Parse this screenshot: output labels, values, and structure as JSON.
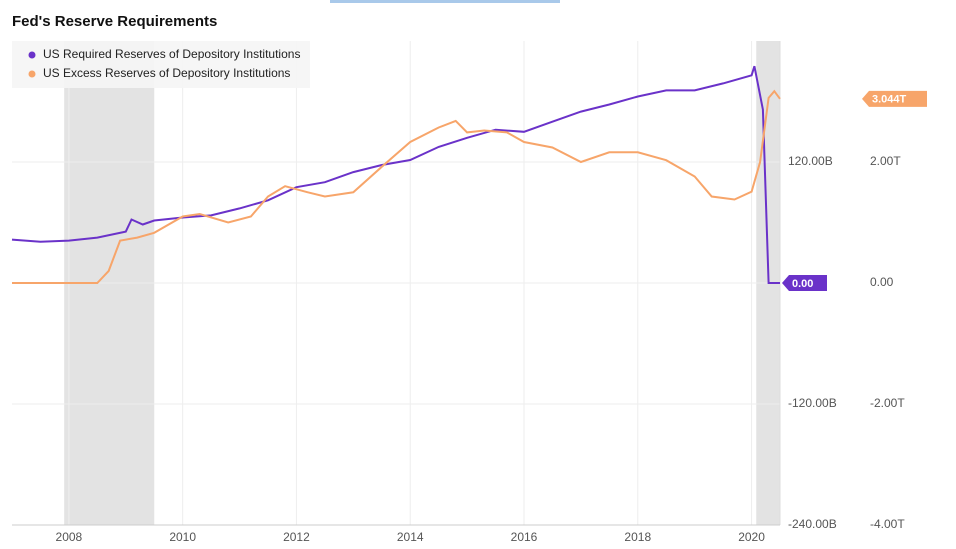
{
  "chart_data": {
    "type": "line",
    "title": "Fed's Reserve Requirements",
    "xlim": [
      2007,
      2020.5
    ],
    "xticks": [
      2008,
      2010,
      2012,
      2014,
      2016,
      2018,
      2020
    ],
    "ylim": [
      -240,
      240
    ],
    "yticks": [
      {
        "value": -240,
        "label": "-240.00B"
      },
      {
        "value": -120,
        "label": "-120.00B"
      },
      {
        "value": 0,
        "label": "0.00"
      },
      {
        "value": 120,
        "label": "120.00B"
      }
    ],
    "y2lim": [
      -4,
      4
    ],
    "y2ticks": [
      {
        "value": -4,
        "label": "-4.00T"
      },
      {
        "value": -2,
        "label": "-2.00T"
      },
      {
        "value": 0,
        "label": "0.00"
      },
      {
        "value": 2,
        "label": "2.00T"
      }
    ],
    "grid": true,
    "legend": "upper left",
    "recessions": [
      [
        2007.917,
        2009.5
      ],
      [
        2020.083,
        2020.5
      ]
    ],
    "series": [
      {
        "name": "US Required Reserves of Depository Institutions",
        "color": "#6a32c9",
        "x": [
          2007,
          2007.5,
          2008,
          2008.5,
          2009,
          2009.1,
          2009.3,
          2009.5,
          2010,
          2010.5,
          2011,
          2011.5,
          2012,
          2012.5,
          2013,
          2013.5,
          2014,
          2014.5,
          2015,
          2015.5,
          2016,
          2016.5,
          2017,
          2017.5,
          2018,
          2018.5,
          2019,
          2019.5,
          2020,
          2020.05,
          2020.2,
          2020.3,
          2020.5
        ],
        "values": [
          43,
          41,
          42,
          45,
          51,
          63,
          58,
          62,
          65,
          67,
          74,
          82,
          95,
          100,
          110,
          117,
          122,
          135,
          144,
          152,
          150,
          160,
          170,
          177,
          185,
          191,
          191,
          198,
          206,
          215,
          172,
          0,
          0
        ],
        "end_label": "0.00"
      },
      {
        "name": "US Excess Reserves of Depository Institutions",
        "color": "#f7a56a",
        "axis": "y2",
        "x": [
          2007,
          2008.5,
          2008.7,
          2008.9,
          2009.2,
          2009.5,
          2010,
          2010.3,
          2010.8,
          2011.2,
          2011.5,
          2011.8,
          2012.2,
          2012.5,
          2013,
          2013.5,
          2014,
          2014.5,
          2014.8,
          2015,
          2015.3,
          2015.7,
          2016,
          2016.5,
          2017,
          2017.5,
          2018,
          2018.5,
          2019,
          2019.3,
          2019.7,
          2020,
          2020.15,
          2020.3,
          2020.4,
          2020.5
        ],
        "values": [
          0,
          0,
          0.2,
          0.7,
          0.75,
          0.83,
          1.1,
          1.14,
          1.0,
          1.1,
          1.43,
          1.6,
          1.5,
          1.43,
          1.5,
          1.92,
          2.33,
          2.57,
          2.68,
          2.49,
          2.52,
          2.49,
          2.33,
          2.24,
          2.0,
          2.16,
          2.16,
          2.03,
          1.76,
          1.43,
          1.38,
          1.51,
          2.0,
          3.06,
          3.17,
          3.044
        ],
        "end_label": "3.044T"
      }
    ]
  }
}
